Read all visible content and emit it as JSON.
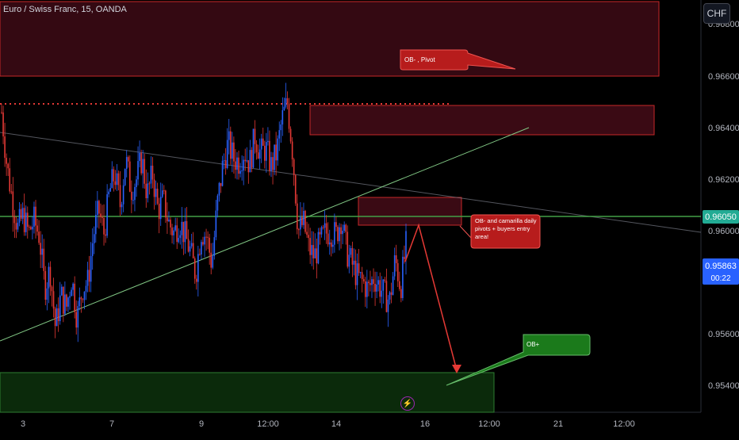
{
  "header": {
    "title": "Euro / Swiss Franc, 15, OANDA"
  },
  "currency_button": {
    "label": "CHF"
  },
  "chart_data": {
    "type": "candlestick",
    "x_ticks": [
      "3",
      "7",
      "9",
      "12:00",
      "14",
      "16",
      "12:00",
      "21",
      "12:00"
    ],
    "y_ticks": [
      "0.96800",
      "0.96600",
      "0.96400",
      "0.96200",
      "0.96000",
      "0.95600",
      "0.95400"
    ],
    "ylim": [
      0.953,
      0.969
    ],
    "grid": false,
    "price_levels": [
      {
        "label": "0.96050",
        "value": 0.9605,
        "color": "#22ab94"
      },
      {
        "label": "0.95863",
        "value": 0.95863,
        "color": "#2962ff",
        "countdown": "00:22"
      }
    ],
    "annotations": [
      {
        "text": "OB- , Pivot",
        "color": "#b71c1c"
      },
      {
        "text": "OB- and camarilla daily pivots + buyers entry area!",
        "color": "#b71c1c"
      },
      {
        "text": "OB+",
        "color": "#1b7a1b"
      }
    ],
    "series_path": [
      0.9646,
      0.9625,
      0.9612,
      0.9601,
      0.9606,
      0.9599,
      0.9604,
      0.9598,
      0.9578,
      0.9585,
      0.9562,
      0.9575,
      0.957,
      0.9582,
      0.9566,
      0.9578,
      0.958,
      0.9598,
      0.9608,
      0.9599,
      0.9615,
      0.9622,
      0.961,
      0.9628,
      0.9616,
      0.962,
      0.9628,
      0.9614,
      0.9622,
      0.9608,
      0.9612,
      0.9603,
      0.9599,
      0.9604,
      0.9598,
      0.9592,
      0.9583,
      0.96,
      0.9598,
      0.9587,
      0.961,
      0.9625,
      0.9634,
      0.9628,
      0.9627,
      0.9631,
      0.9626,
      0.9637,
      0.963,
      0.9632,
      0.9625,
      0.963,
      0.9643,
      0.965,
      0.963,
      0.96,
      0.9603,
      0.9593,
      0.959,
      0.9595,
      0.9599,
      0.96,
      0.9598,
      0.9605,
      0.9592,
      0.9587,
      0.9582,
      0.958,
      0.9577,
      0.9582,
      0.9579,
      0.9575,
      0.9573,
      0.9589,
      0.9578,
      0.9594
    ]
  }
}
